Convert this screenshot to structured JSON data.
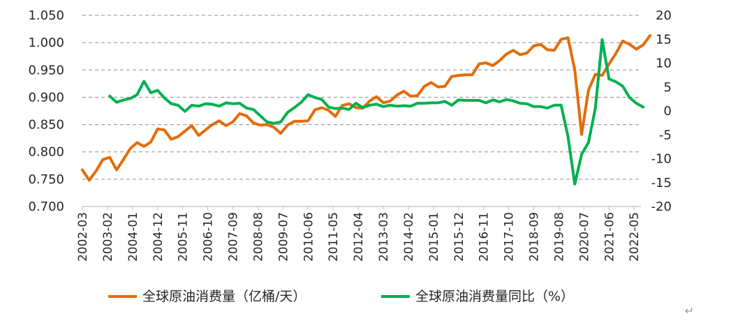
{
  "chart_data": {
    "type": "line",
    "title": "",
    "x_labels": [
      "2002-03",
      "2003-02",
      "2004-01",
      "2004-12",
      "2005-11",
      "2006-10",
      "2007-09",
      "2008-08",
      "2009-07",
      "2010-06",
      "2011-05",
      "2012-04",
      "2013-03",
      "2014-02",
      "2015-01",
      "2015-12",
      "2016-11",
      "2017-10",
      "2018-09",
      "2019-08",
      "2020-07",
      "2021-06",
      "2022-05"
    ],
    "y_left": {
      "range": [
        0.7,
        1.05
      ],
      "ticks": [
        "1.050",
        "1.000",
        "0.950",
        "0.900",
        "0.850",
        "0.800",
        "0.750",
        "0.700"
      ]
    },
    "y_right": {
      "range": [
        -20,
        20
      ],
      "ticks": [
        "20",
        "15",
        "10",
        "5",
        "0",
        "-5",
        "-10",
        "-15",
        "-20"
      ]
    },
    "grid": "horizontal dashed",
    "series": [
      {
        "name": "全球原油消费量（亿桶/天）",
        "axis": "left",
        "color": "#E36C0A",
        "values": [
          0.767,
          0.748,
          0.765,
          0.786,
          0.79,
          0.767,
          0.786,
          0.806,
          0.817,
          0.81,
          0.818,
          0.842,
          0.84,
          0.823,
          0.828,
          0.838,
          0.848,
          0.83,
          0.84,
          0.85,
          0.857,
          0.848,
          0.855,
          0.87,
          0.866,
          0.853,
          0.849,
          0.85,
          0.845,
          0.834,
          0.849,
          0.856,
          0.856,
          0.857,
          0.877,
          0.881,
          0.876,
          0.865,
          0.885,
          0.888,
          0.881,
          0.88,
          0.893,
          0.901,
          0.89,
          0.893,
          0.904,
          0.911,
          0.902,
          0.903,
          0.92,
          0.927,
          0.919,
          0.92,
          0.938,
          0.94,
          0.941,
          0.941,
          0.961,
          0.963,
          0.958,
          0.967,
          0.979,
          0.986,
          0.978,
          0.981,
          0.994,
          0.997,
          0.987,
          0.986,
          1.006,
          1.009,
          0.95,
          0.832,
          0.913,
          0.942,
          0.94,
          0.961,
          0.98,
          1.003,
          0.997,
          0.988,
          0.996,
          1.013
        ]
      },
      {
        "name": "全球原油消费量同比（%）",
        "axis": "right",
        "color": "#00B050",
        "values": [
          3.1,
          1.8,
          2.3,
          2.6,
          3.4,
          6.2,
          3.8,
          4.3,
          2.7,
          1.5,
          1.2,
          -0.1,
          1.2,
          1.0,
          1.5,
          1.4,
          1.0,
          1.7,
          1.5,
          1.6,
          0.6,
          0.3,
          -1.0,
          -2.3,
          -2.6,
          -2.3,
          -0.3,
          0.7,
          1.8,
          3.4,
          2.8,
          2.4,
          0.8,
          0.5,
          0.6,
          0.3,
          1.6,
          0.7,
          1.2,
          1.4,
          0.9,
          1.2,
          1.0,
          1.1,
          1.0,
          1.6,
          1.6,
          1.7,
          1.7,
          2.0,
          1.2,
          2.3,
          2.2,
          2.2,
          2.2,
          1.7,
          2.3,
          1.9,
          2.4,
          2.1,
          1.6,
          1.5,
          0.9,
          0.9,
          0.6,
          1.2,
          1.2,
          -5.3,
          -15.3,
          -9.1,
          -6.6,
          0.5,
          14.9,
          6.7,
          6.1,
          5.2,
          2.8,
          1.6,
          0.8
        ]
      }
    ]
  },
  "legend": {
    "series1_label": "全球原油消费量（亿桶/天）",
    "series2_label": "全球原油消费量同比（%）"
  },
  "colors": {
    "orange": "#E36C0A",
    "green": "#00B050",
    "grid": "#8c8c8c",
    "axis": "#bfbfbf"
  },
  "footer": {
    "return_mark": "↵"
  }
}
